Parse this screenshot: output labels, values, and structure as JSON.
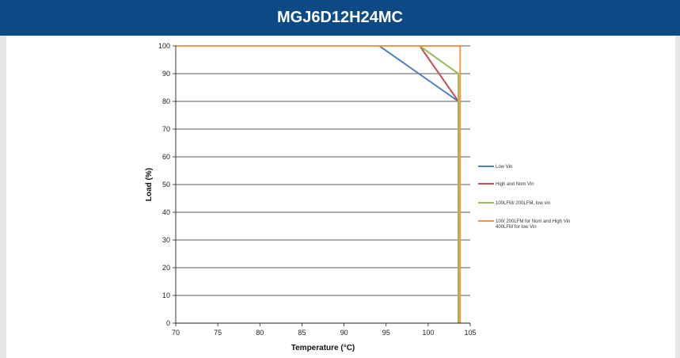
{
  "header": {
    "title": "MGJ6D12H24MC"
  },
  "colors": {
    "header_bg": "#0c4a86",
    "grid": "#222222"
  },
  "chart_data": {
    "type": "line",
    "title": "MGJ6D12H24MC",
    "xlabel": "Temperature (°C)",
    "ylabel": "Load (%)",
    "xlim": [
      70,
      105
    ],
    "ylim": [
      0,
      100
    ],
    "xticks": [
      70,
      75,
      80,
      85,
      90,
      95,
      100,
      105
    ],
    "yticks": [
      0,
      10,
      20,
      30,
      40,
      50,
      60,
      70,
      80,
      90,
      100
    ],
    "grid": true,
    "legend_position": "right",
    "series": [
      {
        "name": "Low Vin",
        "color": "#4f81bd",
        "points": [
          [
            70,
            100
          ],
          [
            94.2,
            100
          ],
          [
            103.6,
            80
          ],
          [
            103.6,
            0
          ]
        ]
      },
      {
        "name": "High and Nom Vin",
        "color": "#c0504d",
        "points": [
          [
            70,
            100
          ],
          [
            99,
            100
          ],
          [
            103.6,
            80
          ],
          [
            103.6,
            0
          ]
        ]
      },
      {
        "name": "100LFM/ 200LFM, low vin",
        "color": "#9bbb59",
        "points": [
          [
            70,
            100
          ],
          [
            99,
            100
          ],
          [
            103.6,
            90
          ],
          [
            103.6,
            0
          ]
        ]
      },
      {
        "name": "100/ 200LFM for Nom and High Vin 400LFM for low Vin",
        "legend_lines": [
          "100/ 200LFM for Nom and High Vin",
          "400LFM for low Vin"
        ],
        "color": "#f79646",
        "points": [
          [
            70,
            100
          ],
          [
            103.8,
            100
          ],
          [
            103.8,
            0
          ]
        ]
      }
    ]
  }
}
